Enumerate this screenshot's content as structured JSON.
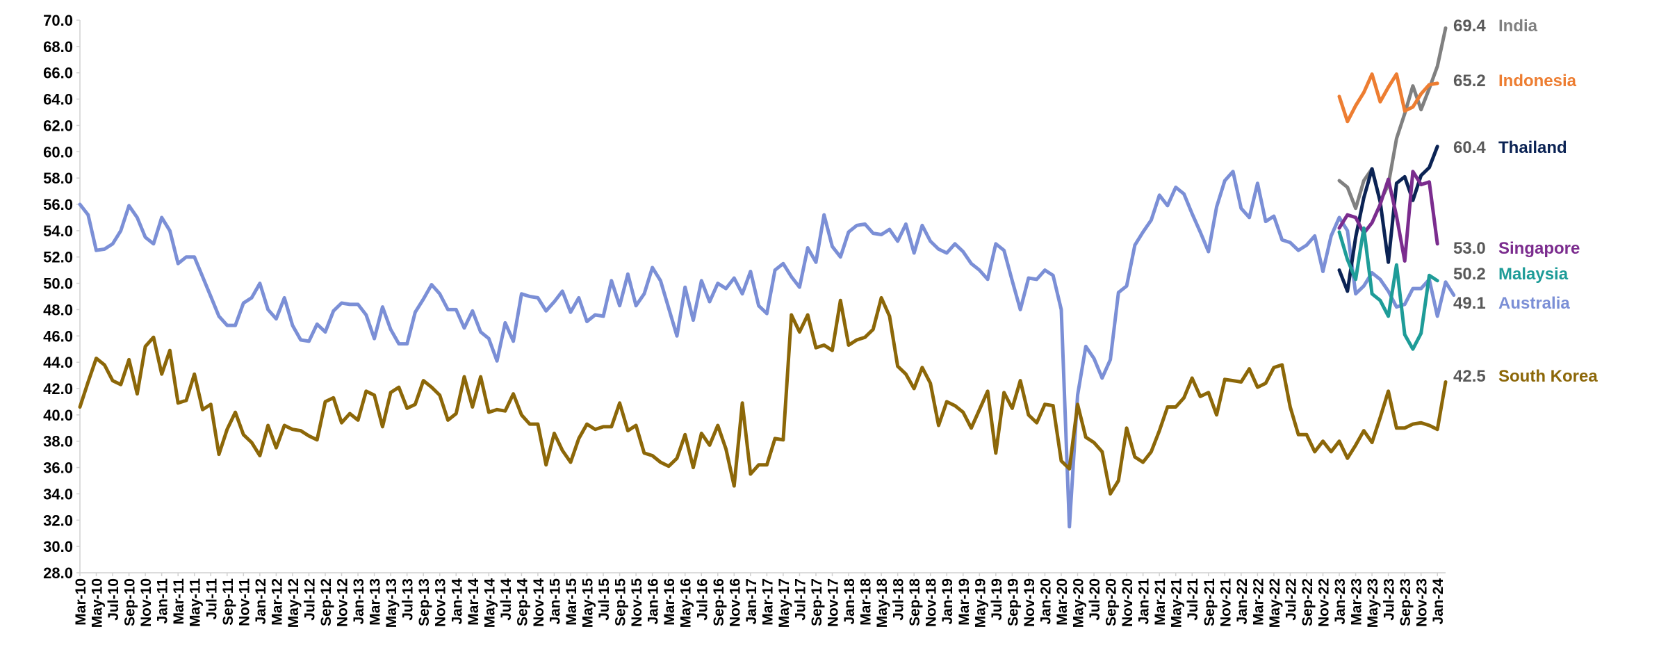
{
  "chart_data": {
    "type": "line",
    "title": "",
    "xlabel": "",
    "ylabel": "",
    "ylim": [
      28.0,
      70.0
    ],
    "yticks": [
      "28.0",
      "30.0",
      "32.0",
      "34.0",
      "36.0",
      "38.0",
      "40.0",
      "42.0",
      "44.0",
      "46.0",
      "48.0",
      "50.0",
      "52.0",
      "54.0",
      "56.0",
      "58.0",
      "60.0",
      "62.0",
      "64.0",
      "66.0",
      "68.0",
      "70.0"
    ],
    "x_start": "2010-03",
    "x_end": "2024-02",
    "x_tick_labels": [
      "Mar-10",
      "May-10",
      "Jul-10",
      "Sep-10",
      "Nov-10",
      "Jan-11",
      "Mar-11",
      "May-11",
      "Jul-11",
      "Sep-11",
      "Nov-11",
      "Jan-12",
      "Mar-12",
      "May-12",
      "Jul-12",
      "Sep-12",
      "Nov-12",
      "Jan-13",
      "Mar-13",
      "May-13",
      "Jul-13",
      "Sep-13",
      "Nov-13",
      "Jan-14",
      "Mar-14",
      "May-14",
      "Jul-14",
      "Sep-14",
      "Nov-14",
      "Jan-15",
      "Mar-15",
      "May-15",
      "Jul-15",
      "Sep-15",
      "Nov-15",
      "Jan-16",
      "Mar-16",
      "May-16",
      "Jul-16",
      "Sep-16",
      "Nov-16",
      "Jan-17",
      "Mar-17",
      "May-17",
      "Jul-17",
      "Sep-17",
      "Nov-17",
      "Jan-18",
      "Mar-18",
      "May-18",
      "Jul-18",
      "Sep-18",
      "Nov-18",
      "Jan-19",
      "Mar-19",
      "May-19",
      "Jul-19",
      "Sep-19",
      "Nov-19",
      "Jan-20",
      "Mar-20",
      "May-20",
      "Jul-20",
      "Sep-20",
      "Nov-20",
      "Jan-21",
      "Mar-21",
      "May-21",
      "Jul-21",
      "Sep-21",
      "Nov-21",
      "Jan-22",
      "Mar-22",
      "May-22",
      "Jul-22",
      "Sep-22",
      "Nov-22",
      "Jan-23",
      "Mar-23",
      "May-23",
      "Jul-23",
      "Sep-23",
      "Nov-23",
      "Jan-24"
    ],
    "series": [
      {
        "name": "Australia",
        "color": "#7B8FD6",
        "start": "2010-03",
        "last_label": "49.1",
        "values": [
          56.0,
          55.2,
          52.5,
          52.6,
          53.0,
          54.0,
          55.9,
          55.0,
          53.5,
          53.0,
          55.0,
          54.0,
          51.5,
          52.0,
          52.0,
          50.5,
          49.0,
          47.5,
          46.8,
          46.8,
          48.5,
          48.9,
          50.0,
          48.0,
          47.3,
          48.9,
          46.8,
          45.7,
          45.6,
          46.9,
          46.3,
          47.9,
          48.5,
          48.4,
          48.4,
          47.6,
          45.8,
          48.2,
          46.5,
          45.4,
          45.4,
          47.8,
          48.8,
          49.9,
          49.2,
          48.0,
          48.0,
          46.6,
          47.9,
          46.3,
          45.8,
          44.1,
          47.0,
          45.6,
          49.2,
          49.0,
          48.9,
          47.9,
          48.6,
          49.4,
          47.8,
          48.9,
          47.1,
          47.6,
          47.5,
          50.2,
          48.3,
          50.7,
          48.3,
          49.2,
          51.2,
          50.2,
          48.1,
          46.0,
          49.7,
          47.2,
          50.2,
          48.6,
          50.0,
          49.6,
          50.4,
          49.2,
          50.9,
          48.3,
          47.7,
          51.0,
          51.5,
          50.5,
          49.7,
          52.7,
          51.6,
          55.2,
          52.8,
          52.0,
          53.9,
          54.4,
          54.5,
          53.8,
          53.7,
          54.1,
          53.2,
          54.5,
          52.3,
          54.4,
          53.2,
          52.6,
          52.3,
          53.0,
          52.4,
          51.5,
          51.0,
          50.3,
          53.0,
          52.5,
          50.2,
          48.0,
          50.4,
          50.3,
          51.0,
          50.6,
          48.0,
          31.5,
          41.5,
          45.2,
          44.3,
          42.8,
          44.2,
          49.3,
          49.8,
          52.9,
          53.9,
          54.8,
          56.7,
          55.9,
          57.3,
          56.8,
          55.3,
          53.9,
          52.4,
          55.8,
          57.8,
          58.5,
          55.7,
          55.0,
          57.6,
          54.7,
          55.1,
          53.3,
          53.1,
          52.5,
          52.9,
          53.6,
          50.9,
          53.6,
          55.0,
          54.0,
          49.2,
          49.8,
          50.8,
          50.3,
          49.4,
          48.2,
          48.4,
          49.6,
          49.6,
          50.3,
          47.5,
          50.1,
          49.1
        ]
      },
      {
        "name": "South Korea",
        "color": "#8C6708",
        "start": "2010-03",
        "last_label": "42.5",
        "values": [
          40.6,
          42.5,
          44.3,
          43.8,
          42.6,
          42.3,
          44.2,
          41.6,
          45.2,
          45.9,
          43.1,
          44.9,
          40.9,
          41.1,
          43.1,
          40.4,
          40.8,
          37.0,
          38.9,
          40.2,
          38.5,
          37.9,
          36.9,
          39.2,
          37.5,
          39.2,
          38.9,
          38.8,
          38.4,
          38.1,
          41.0,
          41.3,
          39.4,
          40.1,
          39.6,
          41.8,
          41.5,
          39.1,
          41.7,
          42.1,
          40.5,
          40.8,
          42.6,
          42.1,
          41.5,
          39.6,
          40.1,
          42.9,
          40.6,
          42.9,
          40.2,
          40.4,
          40.3,
          41.6,
          40.0,
          39.3,
          39.3,
          36.2,
          38.6,
          37.3,
          36.4,
          38.2,
          39.3,
          38.9,
          39.1,
          39.1,
          40.9,
          38.8,
          39.2,
          37.1,
          36.9,
          36.4,
          36.1,
          36.7,
          38.5,
          36.0,
          38.6,
          37.7,
          39.2,
          37.4,
          34.6,
          40.9,
          35.5,
          36.2,
          36.2,
          38.2,
          38.1,
          47.6,
          46.3,
          47.6,
          45.1,
          45.3,
          44.9,
          48.7,
          45.3,
          45.7,
          45.9,
          46.5,
          48.9,
          47.5,
          43.7,
          43.1,
          42.0,
          43.6,
          42.4,
          39.2,
          41.0,
          40.7,
          40.2,
          39.0,
          40.4,
          41.8,
          37.1,
          41.7,
          40.5,
          42.6,
          40.0,
          39.4,
          40.8,
          40.7,
          36.5,
          35.9,
          40.8,
          38.3,
          37.9,
          37.2,
          34.0,
          35.0,
          39.0,
          36.8,
          36.4,
          37.2,
          38.8,
          40.6,
          40.6,
          41.3,
          42.8,
          41.4,
          41.7,
          40.0,
          42.7,
          42.6,
          42.5,
          43.5,
          42.1,
          42.4,
          43.6,
          43.8,
          40.6,
          38.5,
          38.5,
          37.2,
          38.0,
          37.2,
          38.0,
          36.7,
          37.7,
          38.8,
          37.9,
          39.8,
          41.8,
          39.0,
          39.0,
          39.3,
          39.4,
          39.2,
          38.9,
          42.5
        ]
      },
      {
        "name": "India",
        "color": "#808080",
        "start": "2023-01",
        "last_label": "69.4",
        "values": [
          57.8,
          57.3,
          55.7,
          57.8,
          58.7,
          56.2,
          57.5,
          61.0,
          62.9,
          65.0,
          63.2,
          64.8,
          66.5,
          69.4
        ]
      },
      {
        "name": "Indonesia",
        "color": "#ED7D31",
        "start": "2023-01",
        "last_label": "65.2",
        "values": [
          64.2,
          62.3,
          63.5,
          64.5,
          65.9,
          63.8,
          64.9,
          65.9,
          63.1,
          63.4,
          64.4,
          65.1,
          65.2
        ]
      },
      {
        "name": "Thailand",
        "color": "#0B2354",
        "start": "2023-01",
        "last_label": "60.4",
        "values": [
          51.0,
          49.4,
          53.5,
          56.5,
          58.7,
          56.2,
          51.6,
          57.6,
          58.1,
          56.3,
          58.2,
          58.8,
          60.4
        ]
      },
      {
        "name": "Singapore",
        "color": "#7B2C8E",
        "start": "2023-01",
        "last_label": "53.0",
        "values": [
          54.2,
          55.2,
          55.0,
          53.8,
          54.6,
          56.0,
          57.9,
          55.1,
          51.7,
          58.5,
          57.5,
          57.7,
          53.0
        ]
      },
      {
        "name": "Malaysia",
        "color": "#1E9C98",
        "start": "2023-01",
        "last_label": "50.2",
        "values": [
          53.9,
          51.8,
          50.3,
          54.2,
          49.2,
          48.7,
          47.5,
          51.4,
          46.1,
          45.0,
          46.2,
          50.6,
          50.2
        ]
      }
    ]
  }
}
